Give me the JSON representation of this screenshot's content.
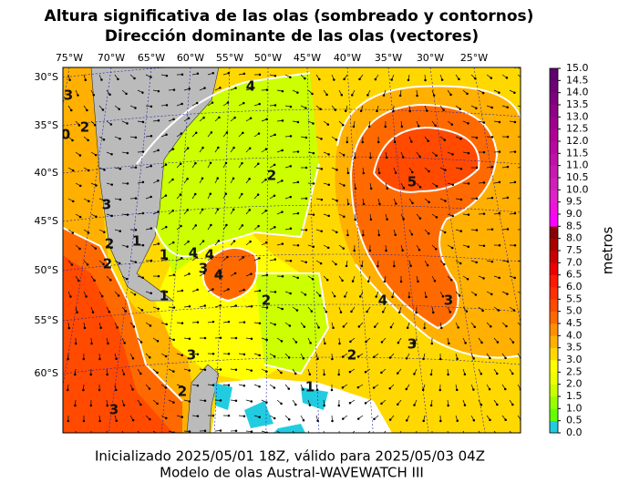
{
  "title": [
    "Altura significativa de las olas (sombreado y contornos)",
    "Dirección dominante de las olas (vectores)"
  ],
  "lon_labels": [
    "75°W",
    "70°W",
    "65°W",
    "60°W",
    "55°W",
    "50°W",
    "45°W",
    "40°W",
    "35°W",
    "30°W",
    "25°W"
  ],
  "lat_labels": [
    "30°S",
    "35°S",
    "40°S",
    "45°S",
    "50°S",
    "55°S",
    "60°S"
  ],
  "colorbar": {
    "label": "metros",
    "ticks": [
      "0.0",
      "0.5",
      "1.0",
      "1.5",
      "2.0",
      "2.5",
      "3.0",
      "3.5",
      "4.0",
      "4.5",
      "5.0",
      "5.5",
      "6.0",
      "6.5",
      "7.0",
      "7.5",
      "8.0",
      "8.5",
      "9.0",
      "9.5",
      "10.0",
      "10.5",
      "11.0",
      "11.5",
      "12.0",
      "12.5",
      "13.0",
      "13.5",
      "14.0",
      "14.5",
      "15.0"
    ],
    "colors": [
      "#22cce0",
      "#66ff00",
      "#99ff00",
      "#ccff00",
      "#eeff00",
      "#ffff00",
      "#ffd800",
      "#ffb000",
      "#ff9000",
      "#ff6a00",
      "#ff4a00",
      "#ff3000",
      "#ff1a00",
      "#ee0000",
      "#cc0000",
      "#aa0000",
      "#8b0000",
      "#ff00ff",
      "#f010e0",
      "#e020c8",
      "#d020b8",
      "#c818b0",
      "#c010a8",
      "#b808a0",
      "#b00098",
      "#a00090",
      "#900088",
      "#800080",
      "#700078",
      "#600070"
    ]
  },
  "contour_labels": [
    "3",
    "2",
    "0",
    "3",
    "2",
    "2",
    "1",
    "2",
    "1",
    "3",
    "4",
    "4",
    "4",
    "1",
    "2",
    "5",
    "4",
    "3",
    "3",
    "2",
    "3",
    "3",
    "2",
    "1",
    "4"
  ],
  "footer": [
    "Inicializado 2025/05/01 18Z, válido para 2025/05/03 04Z",
    "Modelo de olas Austral-WAVEWATCH III"
  ]
}
